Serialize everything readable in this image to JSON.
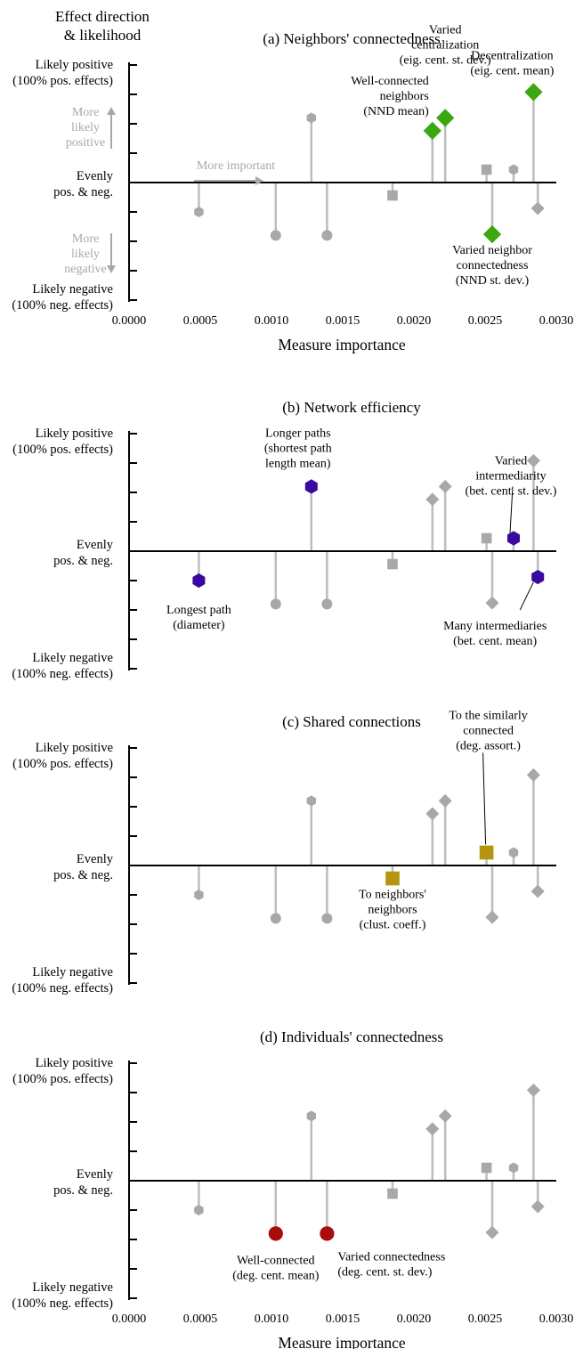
{
  "header": {
    "line1": "Effect direction",
    "line2": "& likelihood"
  },
  "xlabel": "Measure importance",
  "ylabels": {
    "top1": "Likely positive",
    "top2": "(100% pos. effects)",
    "mid1": "Evenly",
    "mid2": "pos. & neg.",
    "bot1": "Likely negative",
    "bot2": "(100% neg. effects)"
  },
  "guides": {
    "more_important": "More important",
    "more_likely_positive": [
      "More",
      "likely",
      "positive"
    ],
    "more_likely_negative": [
      "More",
      "likely",
      "negative"
    ]
  },
  "x_ticks": [
    "0.0000",
    "0.0005",
    "0.0010",
    "0.0015",
    "0.0020",
    "0.0025",
    "0.0030"
  ],
  "colors": {
    "gray": "#a8a8a8",
    "stem": "#bdbdbd",
    "axis": "#000000",
    "guide": "#a8a8a8",
    "green": "#3aa80f",
    "purple": "#3a0aa0",
    "olive": "#b59510",
    "red": "#a80c0c"
  },
  "chart_data": [
    {
      "type": "scatter",
      "title": "(a) Neighbors' connectedness",
      "xlim": [
        0,
        0.003
      ],
      "ylim": [
        -1,
        1
      ],
      "highlight_color": "green",
      "points": [
        {
          "x": 0.00049,
          "y": -0.25,
          "shape": "hexagon"
        },
        {
          "x": 0.00103,
          "y": -0.45,
          "shape": "circle"
        },
        {
          "x": 0.00128,
          "y": 0.55,
          "shape": "hexagon"
        },
        {
          "x": 0.00139,
          "y": -0.45,
          "shape": "circle"
        },
        {
          "x": 0.00185,
          "y": -0.11,
          "shape": "square"
        },
        {
          "x": 0.00213,
          "y": 0.44,
          "shape": "diamond",
          "hl": true,
          "label": [
            "Well-connected",
            "neighbors",
            "(NND mean)"
          ]
        },
        {
          "x": 0.00222,
          "y": 0.55,
          "shape": "diamond",
          "hl": true,
          "label": [
            "Varied",
            "centralization",
            "(eig. cent. st. dev.)"
          ]
        },
        {
          "x": 0.00251,
          "y": 0.11,
          "shape": "square"
        },
        {
          "x": 0.00255,
          "y": -0.44,
          "shape": "diamond",
          "hl": true,
          "label": [
            "Varied neighbor",
            "connectedness",
            "(NND st. dev.)"
          ]
        },
        {
          "x": 0.0027,
          "y": 0.11,
          "shape": "hexagon"
        },
        {
          "x": 0.00284,
          "y": 0.77,
          "shape": "diamond",
          "hl": true,
          "label": [
            "Decentralization",
            "(eig. cent. mean)"
          ]
        },
        {
          "x": 0.00287,
          "y": -0.22,
          "shape": "diamond"
        }
      ]
    },
    {
      "type": "scatter",
      "title": "(b) Network efficiency",
      "xlim": [
        0,
        0.003
      ],
      "ylim": [
        -1,
        1
      ],
      "highlight_color": "purple",
      "points": [
        {
          "x": 0.00049,
          "y": -0.25,
          "shape": "hexagon",
          "hl": true,
          "label": [
            "Longest path",
            "(diameter)"
          ]
        },
        {
          "x": 0.00103,
          "y": -0.45,
          "shape": "circle"
        },
        {
          "x": 0.00128,
          "y": 0.55,
          "shape": "hexagon",
          "hl": true,
          "label": [
            "Longer paths",
            "(shortest path",
            "length mean)"
          ]
        },
        {
          "x": 0.00139,
          "y": -0.45,
          "shape": "circle"
        },
        {
          "x": 0.00185,
          "y": -0.11,
          "shape": "square"
        },
        {
          "x": 0.00213,
          "y": 0.44,
          "shape": "diamond"
        },
        {
          "x": 0.00222,
          "y": 0.55,
          "shape": "diamond"
        },
        {
          "x": 0.00251,
          "y": 0.11,
          "shape": "square"
        },
        {
          "x": 0.00255,
          "y": -0.44,
          "shape": "diamond"
        },
        {
          "x": 0.0027,
          "y": 0.11,
          "shape": "hexagon",
          "hl": true,
          "label": [
            "Varied",
            "intermediarity",
            "(bet. cent. st. dev.)"
          ]
        },
        {
          "x": 0.00284,
          "y": 0.77,
          "shape": "diamond"
        },
        {
          "x": 0.00287,
          "y": -0.22,
          "shape": "hexagon",
          "hl": true,
          "label": [
            "Many intermediaries",
            "(bet. cent. mean)"
          ]
        }
      ]
    },
    {
      "type": "scatter",
      "title": "(c) Shared connections",
      "xlim": [
        0,
        0.003
      ],
      "ylim": [
        -1,
        1
      ],
      "highlight_color": "olive",
      "points": [
        {
          "x": 0.00049,
          "y": -0.25,
          "shape": "hexagon"
        },
        {
          "x": 0.00103,
          "y": -0.45,
          "shape": "circle"
        },
        {
          "x": 0.00128,
          "y": 0.55,
          "shape": "hexagon"
        },
        {
          "x": 0.00139,
          "y": -0.45,
          "shape": "circle"
        },
        {
          "x": 0.00185,
          "y": -0.11,
          "shape": "square",
          "hl": true,
          "label": [
            "To neighbors'",
            "neighbors",
            "(clust. coeff.)"
          ]
        },
        {
          "x": 0.00213,
          "y": 0.44,
          "shape": "diamond"
        },
        {
          "x": 0.00222,
          "y": 0.55,
          "shape": "diamond"
        },
        {
          "x": 0.00251,
          "y": 0.11,
          "shape": "square",
          "hl": true,
          "label": [
            "To the similarly",
            "connected",
            "(deg. assort.)"
          ]
        },
        {
          "x": 0.00255,
          "y": -0.44,
          "shape": "diamond"
        },
        {
          "x": 0.0027,
          "y": 0.11,
          "shape": "hexagon"
        },
        {
          "x": 0.00284,
          "y": 0.77,
          "shape": "diamond"
        },
        {
          "x": 0.00287,
          "y": -0.22,
          "shape": "diamond"
        }
      ]
    },
    {
      "type": "scatter",
      "title": "(d) Individuals' connectedness",
      "xlim": [
        0,
        0.003
      ],
      "ylim": [
        -1,
        1
      ],
      "highlight_color": "red",
      "points": [
        {
          "x": 0.00049,
          "y": -0.25,
          "shape": "hexagon"
        },
        {
          "x": 0.00103,
          "y": -0.45,
          "shape": "circle",
          "hl": true,
          "label": [
            "Well-connected",
            "(deg. cent. mean)"
          ]
        },
        {
          "x": 0.00128,
          "y": 0.55,
          "shape": "hexagon"
        },
        {
          "x": 0.00139,
          "y": -0.45,
          "shape": "circle",
          "hl": true,
          "label": [
            "Varied connectedness",
            "(deg. cent. st. dev.)"
          ]
        },
        {
          "x": 0.00185,
          "y": -0.11,
          "shape": "square"
        },
        {
          "x": 0.00213,
          "y": 0.44,
          "shape": "diamond"
        },
        {
          "x": 0.00222,
          "y": 0.55,
          "shape": "diamond"
        },
        {
          "x": 0.00251,
          "y": 0.11,
          "shape": "square"
        },
        {
          "x": 0.00255,
          "y": -0.44,
          "shape": "diamond"
        },
        {
          "x": 0.0027,
          "y": 0.11,
          "shape": "hexagon"
        },
        {
          "x": 0.00284,
          "y": 0.77,
          "shape": "diamond"
        },
        {
          "x": 0.00287,
          "y": -0.22,
          "shape": "diamond"
        }
      ]
    }
  ]
}
